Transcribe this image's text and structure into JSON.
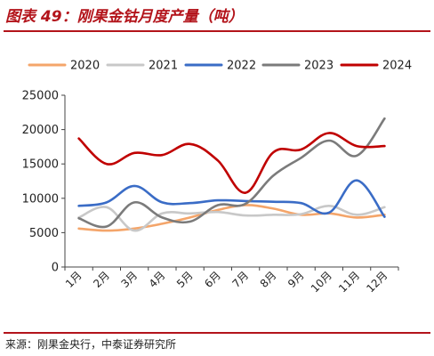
{
  "figure": {
    "title": "图表 49：刚果金钴月度产量（吨）",
    "source": "来源：刚果金央行，中泰证券研究所"
  },
  "chart_data": {
    "type": "line",
    "title": "",
    "xlabel": "",
    "ylabel": "",
    "categories": [
      "1月",
      "2月",
      "3月",
      "4月",
      "5月",
      "6月",
      "7月",
      "8月",
      "9月",
      "10月",
      "11月",
      "12月"
    ],
    "ylim": [
      0,
      25000
    ],
    "yticks": [
      0,
      5000,
      10000,
      15000,
      20000,
      25000
    ],
    "ytick_labels": [
      "0",
      "5000",
      "10000",
      "15000",
      "20000",
      "25000"
    ],
    "grid": false,
    "legend_position": "top",
    "smooth": true,
    "series": [
      {
        "name": "2020",
        "color": "#f4a56a",
        "values": [
          5600,
          5300,
          5600,
          6300,
          7200,
          8300,
          9000,
          8500,
          7600,
          7800,
          7200,
          7600
        ]
      },
      {
        "name": "2021",
        "color": "#c8c8c8",
        "values": [
          7200,
          8700,
          5300,
          7800,
          7800,
          8000,
          7500,
          7600,
          7700,
          8900,
          7600,
          8700
        ]
      },
      {
        "name": "2022",
        "color": "#3a6cc6",
        "values": [
          8900,
          9400,
          11800,
          9400,
          9300,
          9700,
          9600,
          9500,
          9300,
          7900,
          12600,
          7300
        ]
      },
      {
        "name": "2023",
        "color": "#7b7b7b",
        "values": [
          7100,
          5900,
          9400,
          7200,
          6600,
          9000,
          9200,
          13300,
          15900,
          18400,
          16200,
          21600
        ]
      },
      {
        "name": "2024",
        "color": "#c00000",
        "values": [
          18700,
          15000,
          16600,
          16300,
          17900,
          15500,
          10800,
          16700,
          17100,
          19500,
          17600,
          17600
        ]
      }
    ]
  }
}
